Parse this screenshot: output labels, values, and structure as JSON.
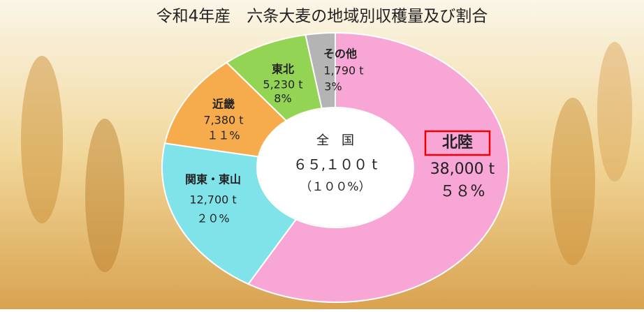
{
  "chart_data": {
    "type": "pie",
    "title": "令和4年産　六条大麦の地域別収穫量及び割合",
    "categories": [
      "北陸",
      "関東・東山",
      "近畿",
      "東北",
      "その他"
    ],
    "tonnes": [
      38000,
      12700,
      7380,
      5230,
      1790
    ],
    "tonne_labels": [
      "38,000 t",
      "12,700 t",
      "7,380 t",
      "5,230 t",
      "1,790 t"
    ],
    "values": [
      58,
      20,
      11,
      8,
      3
    ],
    "value_labels": [
      "５８%",
      "２０%",
      "１１%",
      "8%",
      "3%"
    ],
    "colors": [
      "#f7a6d6",
      "#80e3ea",
      "#f6ab4c",
      "#93d455",
      "#b4b4b4"
    ],
    "center_label": "全　国",
    "total": 65100,
    "total_label": "６５,１００ t",
    "total_percent_label": "（１００%）"
  }
}
